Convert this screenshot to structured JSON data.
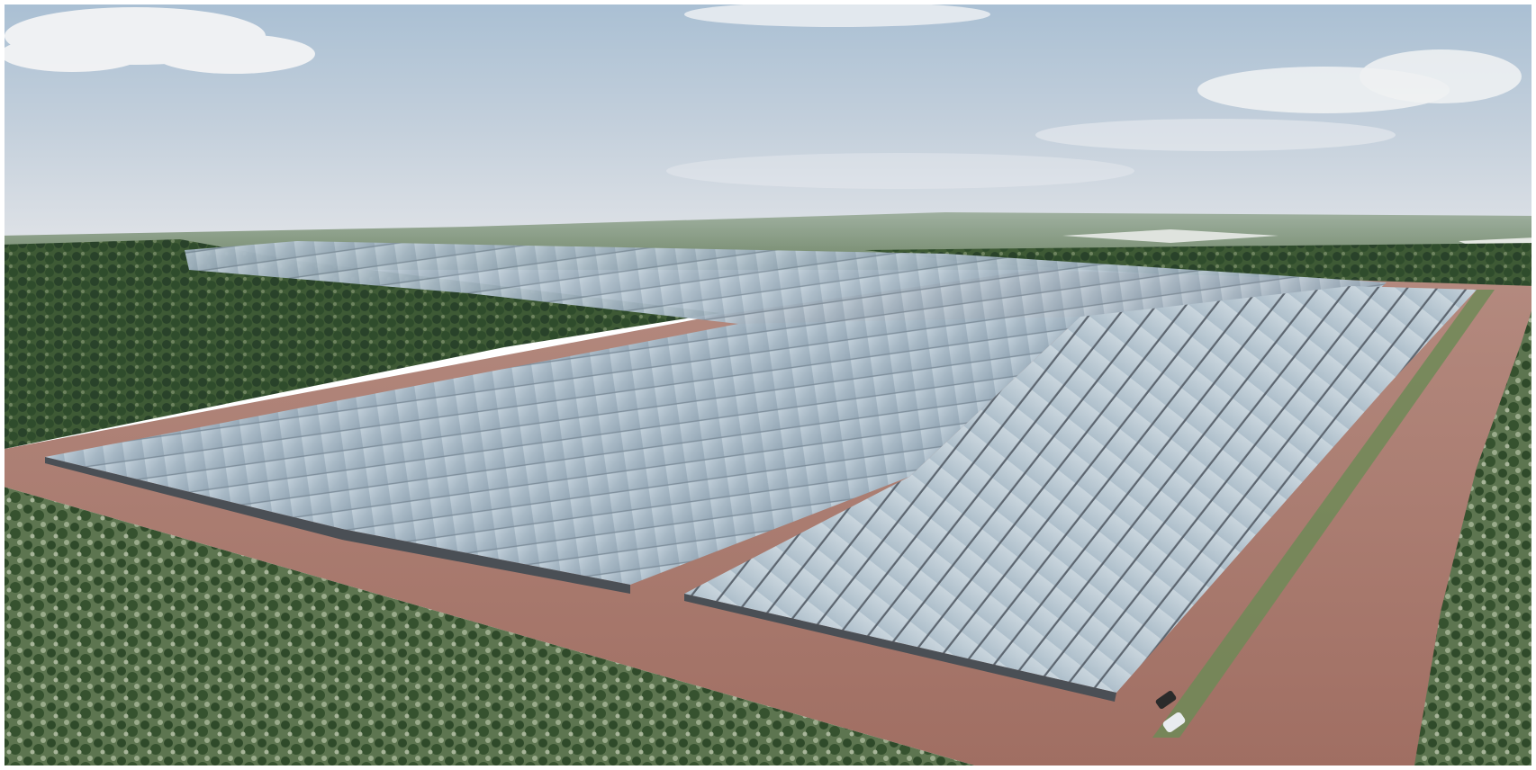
{
  "image": {
    "subject": "aerial-rendering-solar-farm",
    "palette": {
      "sky_top": "#a9bfd3",
      "sky_horizon": "#d8dde4",
      "cloud": "#f4f5f6",
      "vegetation_dark": "#2f4a2a",
      "vegetation_mid": "#4d6b3f",
      "vegetation_light": "#8fa07e",
      "soil": "#a5766b",
      "soil_light": "#c9a298",
      "panel_light": "#b4c4cf",
      "panel_mid": "#8fa2b1",
      "panel_shadow": "#4a4f55",
      "track": "#6f8a57",
      "vehicle_white": "#e9ecef",
      "vehicle_dark": "#2b2b2b"
    }
  }
}
